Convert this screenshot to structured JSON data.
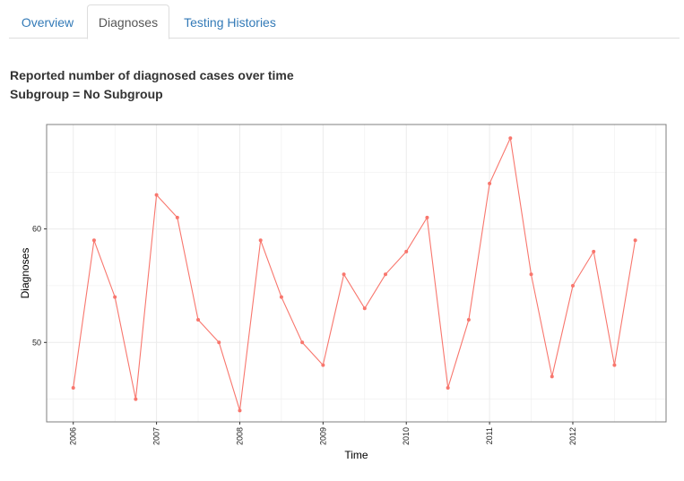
{
  "tabs": [
    {
      "label": "Overview",
      "active": false
    },
    {
      "label": "Diagnoses",
      "active": true
    },
    {
      "label": "Testing Histories",
      "active": false
    }
  ],
  "heading": {
    "line1": "Reported number of diagnosed cases over time",
    "line2": "Subgroup = No Subgroup"
  },
  "colors": {
    "series": "#f8766d",
    "link": "#337ab7",
    "grid": "#ebebeb",
    "panel_border": "#7f7f7f"
  },
  "chart_data": {
    "type": "line",
    "xlabel": "Time",
    "ylabel": "Diagnoses",
    "xlim": [
      2005.68,
      2013.12
    ],
    "ylim": [
      43.0,
      69.2
    ],
    "x_ticks": [
      "2006",
      "2007",
      "2008",
      "2009",
      "2010",
      "2011",
      "2012"
    ],
    "y_ticks": [
      50,
      60
    ],
    "grid": true,
    "series": [
      {
        "x": [
          2006.0,
          2006.25,
          2006.5,
          2006.75,
          2007.0,
          2007.25,
          2007.5,
          2007.75,
          2008.0,
          2008.25,
          2008.5,
          2008.75,
          2009.0,
          2009.25,
          2009.5,
          2009.75,
          2010.0,
          2010.25,
          2010.5,
          2010.75,
          2011.0,
          2011.25,
          2011.5,
          2011.75,
          2012.0,
          2012.25,
          2012.5,
          2012.75
        ],
        "values": [
          46,
          59,
          54,
          45,
          63,
          61,
          52,
          50,
          44,
          59,
          54,
          50,
          48,
          56,
          53,
          56,
          58,
          61,
          46,
          52,
          64,
          68,
          56,
          47,
          55,
          58,
          48,
          59
        ]
      }
    ]
  }
}
